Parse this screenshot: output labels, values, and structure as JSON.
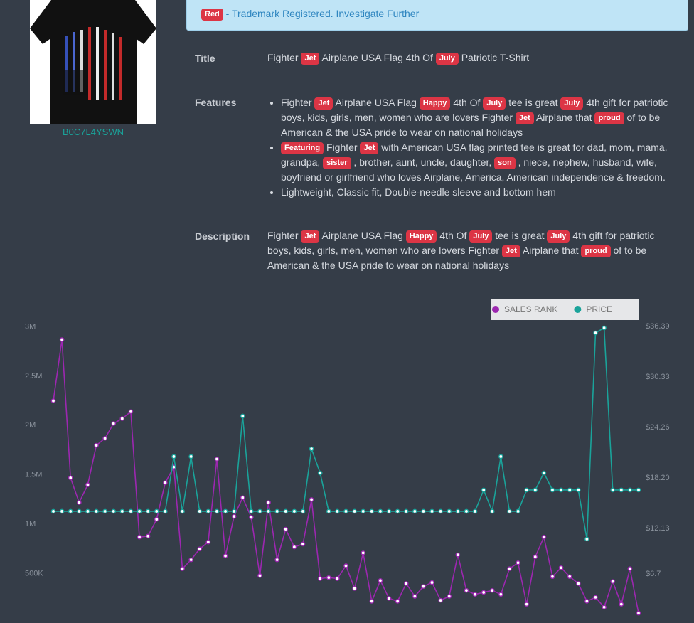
{
  "alert": {
    "badge": "Red",
    "text": "- Trademark Registered. Investigate Further"
  },
  "product": {
    "asin": "B0C7L4YSWN",
    "title": {
      "label": "Title",
      "content": [
        "Fighter",
        {
          "keyword": "Jet"
        },
        "Airplane USA Flag 4th Of",
        {
          "keyword": "July"
        },
        "Patriotic T-Shirt"
      ]
    },
    "features": {
      "label": "Features",
      "items": [
        [
          "Fighter",
          {
            "keyword": "Jet"
          },
          "Airplane USA Flag",
          {
            "keyword": "Happy"
          },
          "4th Of",
          {
            "keyword": "July"
          },
          "tee is great",
          {
            "keyword": "July"
          },
          "4th gift for patriotic boys, kids, girls, men, women who are lovers Fighter",
          {
            "keyword": "Jet"
          },
          "Airplane that",
          {
            "keyword": "proud"
          },
          "of to be American & the USA pride to wear on national holidays"
        ],
        [
          {
            "keyword": "Featuring"
          },
          "Fighter",
          {
            "keyword": "Jet"
          },
          "with American USA flag printed tee is great for dad, mom, mama, grandpa,",
          {
            "keyword": "sister"
          },
          ", brother, aunt, uncle, daughter,",
          {
            "keyword": "son"
          },
          ", niece, nephew, husband, wife, boyfriend or girlfriend who loves Airplane, America, American independence & freedom."
        ],
        [
          "Lightweight, Classic fit, Double-needle sleeve and bottom hem"
        ]
      ]
    },
    "description": {
      "label": "Description",
      "content": [
        "Fighter",
        {
          "keyword": "Jet"
        },
        "Airplane USA Flag",
        {
          "keyword": "Happy"
        },
        "4th Of",
        {
          "keyword": "July"
        },
        "tee is great",
        {
          "keyword": "July"
        },
        "4th gift for patriotic boys, kids, girls, men, women who are lovers Fighter",
        {
          "keyword": "Jet"
        },
        "Airplane that",
        {
          "keyword": "proud"
        },
        "of to be American & the USA pride to wear on national holidays"
      ]
    }
  },
  "chart_data": {
    "type": "line",
    "legend": "top-right",
    "ylim": [
      0,
      3140000
    ],
    "yticks": [
      {
        "value": 500000,
        "label": "500K"
      },
      {
        "value": 1000000,
        "label": "1M"
      },
      {
        "value": 1500000,
        "label": "1.5M"
      },
      {
        "value": 2000000,
        "label": "2M"
      },
      {
        "value": 2500000,
        "label": "2.5M"
      },
      {
        "value": 3000000,
        "label": "3M"
      }
    ],
    "y2lim": [
      0.81,
      38.01
    ],
    "y2ticks": [
      {
        "value": 6.7,
        "label": "$6.7"
      },
      {
        "value": 12.13,
        "label": "$12.13"
      },
      {
        "value": 18.2,
        "label": "$18.20"
      },
      {
        "value": 24.26,
        "label": "$24.26"
      },
      {
        "value": 30.33,
        "label": "$30.33"
      },
      {
        "value": 36.39,
        "label": "$36.39"
      }
    ],
    "series": [
      {
        "name": "SALES RANK",
        "color": "#9c27b0",
        "values": [
          2250000,
          2870000,
          1470000,
          1220000,
          1400000,
          1800000,
          1870000,
          2020000,
          2070000,
          2140000,
          870000,
          880000,
          1050000,
          1420000,
          1580000,
          550000,
          640000,
          750000,
          820000,
          1660000,
          680000,
          1080000,
          1270000,
          1070000,
          480000,
          1220000,
          640000,
          950000,
          770000,
          800000,
          1250000,
          450000,
          460000,
          450000,
          580000,
          350000,
          710000,
          220000,
          430000,
          250000,
          220000,
          400000,
          270000,
          370000,
          410000,
          230000,
          270000,
          690000,
          330000,
          290000,
          310000,
          330000,
          290000,
          550000,
          610000,
          190000,
          670000,
          870000,
          470000,
          560000,
          470000,
          400000,
          220000,
          260000,
          160000,
          420000,
          190000,
          550000,
          100000
        ]
      },
      {
        "name": "PRICE",
        "color": "#1aa39a",
        "axis": "y2",
        "values": [
          14.21,
          14.21,
          14.21,
          14.21,
          14.21,
          14.21,
          14.21,
          14.21,
          14.21,
          14.21,
          14.21,
          14.21,
          14.21,
          14.21,
          20.78,
          14.21,
          20.78,
          14.21,
          14.21,
          14.21,
          14.21,
          14.21,
          25.64,
          14.21,
          14.21,
          14.21,
          14.21,
          14.21,
          14.21,
          14.21,
          21.7,
          18.81,
          14.21,
          14.21,
          14.21,
          14.21,
          14.21,
          14.21,
          14.21,
          14.21,
          14.21,
          14.21,
          14.21,
          14.21,
          14.21,
          14.21,
          14.21,
          14.21,
          14.21,
          14.21,
          16.77,
          14.21,
          20.78,
          14.21,
          14.21,
          16.77,
          16.77,
          18.81,
          16.77,
          16.77,
          16.77,
          16.77,
          10.88,
          35.62,
          36.22,
          16.77,
          16.77,
          16.77,
          16.77
        ]
      }
    ]
  }
}
